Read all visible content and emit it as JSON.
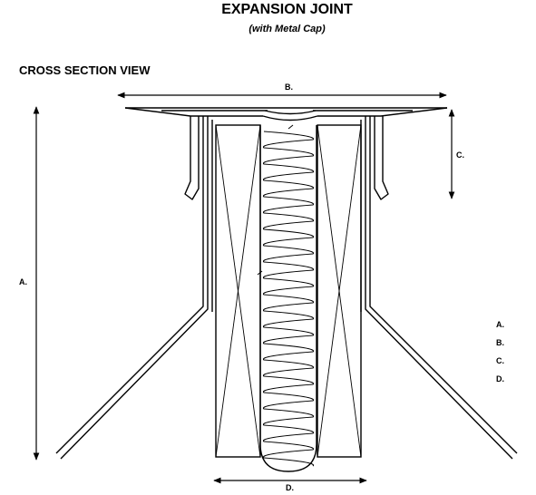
{
  "title": "EXPANSION JOINT",
  "subtitle": "(with Metal Cap)",
  "section_label": "CROSS SECTION VIEW",
  "dimensions": {
    "a": "A.",
    "b": "B.",
    "c": "C.",
    "d": "D."
  },
  "legend": [
    "A.",
    "B.",
    "C.",
    "D."
  ]
}
